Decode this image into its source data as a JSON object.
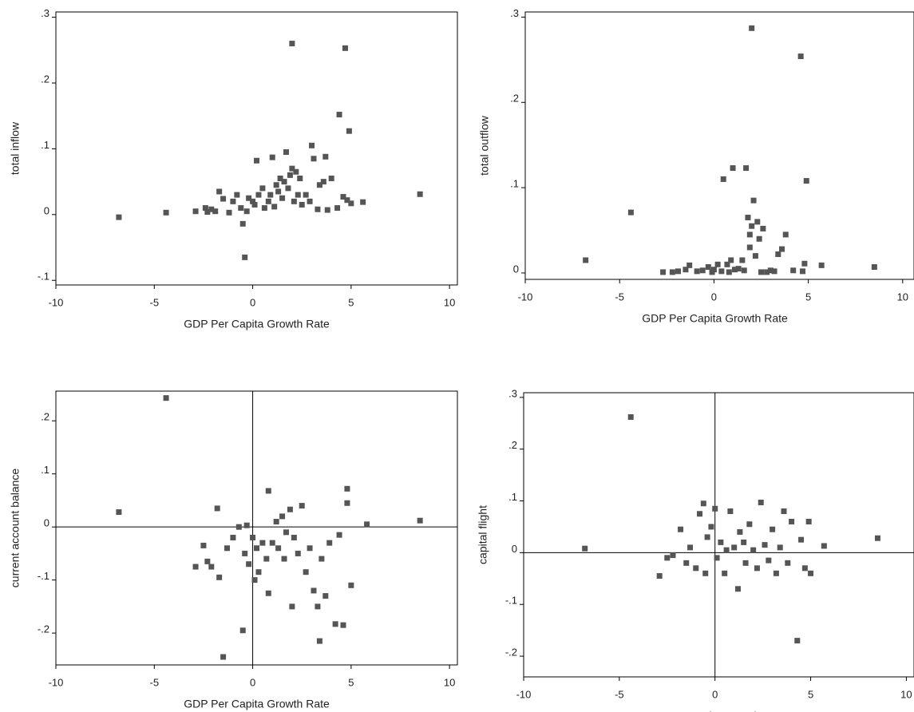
{
  "chart_data": [
    {
      "type": "scatter",
      "x_label": "GDP Per Capita Growth Rate",
      "y_label": "total inflow",
      "color": "#555555",
      "xlim": [
        -10,
        10.4
      ],
      "ylim": [
        -0.107,
        0.308
      ],
      "xticks": [
        -10,
        -5,
        0,
        5,
        10
      ],
      "yticks": [
        {
          "value": 0.3,
          "label": ".3"
        },
        {
          "value": 0.2,
          "label": ".2"
        },
        {
          "value": 0.1,
          "label": ".1"
        },
        0,
        {
          "value": -0.1,
          "label": "-.1"
        }
      ],
      "x": [
        -6.8,
        -4.4,
        -2.9,
        -2.4,
        -2.3,
        -2.1,
        -1.9,
        -1.7,
        -1.5,
        -1.2,
        -1,
        -0.8,
        -0.6,
        -0.5,
        -0.4,
        -0.3,
        -0.2,
        0,
        0.1,
        0.2,
        0.3,
        0.5,
        0.6,
        0.8,
        0.9,
        1,
        1.1,
        1.2,
        1.3,
        1.4,
        1.5,
        1.6,
        1.7,
        1.8,
        1.9,
        2,
        2,
        2.1,
        2.2,
        2.3,
        2.4,
        2.5,
        2.7,
        2.9,
        3,
        3.1,
        3.3,
        3.4,
        3.6,
        3.7,
        3.8,
        4,
        4.3,
        4.4,
        4.6,
        4.7,
        4.8,
        4.9,
        5,
        5.6,
        8.5
      ],
      "values": [
        -0.004,
        0.003,
        0.005,
        0.01,
        0.004,
        0.008,
        0.005,
        0.035,
        0.024,
        0.003,
        0.02,
        0.03,
        0.01,
        -0.014,
        -0.065,
        0.005,
        0.025,
        0.02,
        0.015,
        0.082,
        0.03,
        0.04,
        0.01,
        0.02,
        0.03,
        0.087,
        0.012,
        0.045,
        0.035,
        0.055,
        0.025,
        0.05,
        0.095,
        0.04,
        0.06,
        0.26,
        0.07,
        0.02,
        0.065,
        0.03,
        0.055,
        0.015,
        0.03,
        0.02,
        0.105,
        0.085,
        0.008,
        0.045,
        0.05,
        0.088,
        0.007,
        0.055,
        0.01,
        0.152,
        0.027,
        0.253,
        0.022,
        0.127,
        0.017,
        0.019,
        0.031
      ]
    },
    {
      "type": "scatter",
      "x_label": "GDP Per Capita Growth Rate",
      "y_label": "total outflow",
      "color": "#555555",
      "xlim": [
        -10,
        10.6
      ],
      "ylim": [
        -0.0075,
        0.306
      ],
      "xticks": [
        -10,
        -5,
        0,
        5,
        10
      ],
      "yticks": [
        {
          "value": 0.3,
          "label": ".3"
        },
        {
          "value": 0.2,
          "label": ".2"
        },
        {
          "value": 0.1,
          "label": ".1"
        },
        0
      ],
      "x": [
        -6.8,
        -4.4,
        -2.7,
        -2.2,
        -1.9,
        -1.5,
        -1.3,
        -0.9,
        -0.6,
        -0.3,
        0,
        0.2,
        0.4,
        0.5,
        0.7,
        0.9,
        1,
        1.1,
        1.3,
        1.5,
        1.7,
        1.8,
        1.9,
        1.9,
        2,
        2,
        2.1,
        2.2,
        2.3,
        2.4,
        2.6,
        2.8,
        3.2,
        3.4,
        3.6,
        3.8,
        4.2,
        4.6,
        4.7,
        4.8,
        4.9,
        5.7,
        8.5,
        3,
        2.5,
        1.6,
        0.8,
        -0.1
      ],
      "values": [
        0.015,
        0.071,
        0.001,
        0.001,
        0.002,
        0.004,
        0.009,
        0.002,
        0.003,
        0.007,
        0.004,
        0.01,
        0.002,
        0.11,
        0.01,
        0.015,
        0.123,
        0.004,
        0.005,
        0.015,
        0.123,
        0.065,
        0.045,
        0.03,
        0.287,
        0.055,
        0.085,
        0.02,
        0.06,
        0.04,
        0.052,
        0.001,
        0.002,
        0.022,
        0.028,
        0.045,
        0.003,
        0.254,
        0.002,
        0.011,
        0.108,
        0.009,
        0.007,
        0.003,
        0.001,
        0.003,
        0.001,
        0.001
      ]
    },
    {
      "type": "scatter",
      "x_label": "GDP Per Capita Growth Rate",
      "y_label": "current account balance",
      "color": "#555555",
      "reference_lines": true,
      "xlim": [
        -10,
        10.4
      ],
      "ylim": [
        -0.26,
        0.256
      ],
      "xticks": [
        -10,
        -5,
        0,
        5,
        10
      ],
      "yticks": [
        {
          "value": 0.2,
          "label": ".2"
        },
        {
          "value": 0.1,
          "label": ".1"
        },
        0,
        {
          "value": -0.1,
          "label": "-.1"
        },
        {
          "value": -0.2,
          "label": "-.2"
        }
      ],
      "x": [
        -6.8,
        -4.4,
        -2.9,
        -2.5,
        -2.3,
        -2.1,
        -1.8,
        -1.7,
        -1.5,
        -1.3,
        -1,
        -0.7,
        -0.5,
        -0.4,
        -0.3,
        -0.2,
        0,
        0.1,
        0.2,
        0.3,
        0.5,
        0.7,
        0.8,
        0.8,
        1,
        1.2,
        1.3,
        1.5,
        1.6,
        1.7,
        1.9,
        2,
        2.1,
        2.3,
        2.5,
        2.7,
        2.9,
        3.1,
        3.3,
        3.4,
        3.5,
        3.7,
        3.9,
        4.2,
        4.4,
        4.6,
        4.8,
        4.8,
        5,
        5.8,
        8.5
      ],
      "values": [
        0.028,
        0.243,
        -0.075,
        -0.035,
        -0.065,
        -0.075,
        0.035,
        -0.095,
        -0.245,
        -0.04,
        -0.02,
        0,
        -0.195,
        -0.05,
        0.003,
        -0.07,
        -0.02,
        -0.1,
        -0.04,
        -0.085,
        -0.03,
        -0.06,
        -0.125,
        0.068,
        -0.03,
        0.01,
        -0.04,
        0.02,
        -0.06,
        -0.01,
        0.033,
        -0.15,
        -0.02,
        -0.05,
        0.04,
        -0.085,
        -0.04,
        -0.12,
        -0.15,
        -0.215,
        -0.06,
        -0.13,
        -0.03,
        -0.183,
        -0.015,
        -0.185,
        0.072,
        0.045,
        -0.11,
        0.005,
        0.012
      ]
    },
    {
      "type": "scatter",
      "x_label": "GDP Per Capita Growth Rate",
      "y_label": "capital flight",
      "color": "#555555",
      "reference_lines": true,
      "xlim": [
        -10,
        10.4
      ],
      "ylim": [
        -0.24,
        0.309
      ],
      "xticks": [
        -10,
        -5,
        0,
        5,
        10
      ],
      "yticks": [
        {
          "value": 0.3,
          "label": ".3"
        },
        {
          "value": 0.2,
          "label": ".2"
        },
        {
          "value": 0.1,
          "label": ".1"
        },
        0,
        {
          "value": -0.1,
          "label": "-.1"
        },
        {
          "value": -0.2,
          "label": "-.2"
        }
      ],
      "x": [
        -6.8,
        -4.4,
        -2.9,
        -2.5,
        -2.2,
        -1.8,
        -1.5,
        -1.3,
        -1,
        -0.8,
        -0.6,
        -0.5,
        -0.4,
        -0.2,
        0,
        0.1,
        0.3,
        0.5,
        0.6,
        0.8,
        1,
        1.2,
        1.3,
        1.5,
        1.6,
        1.8,
        2,
        2.2,
        2.4,
        2.6,
        2.8,
        3,
        3.2,
        3.4,
        3.6,
        3.8,
        4,
        4.3,
        4.5,
        4.7,
        4.9,
        5,
        5.7,
        8.5
      ],
      "values": [
        0.008,
        0.262,
        -0.045,
        -0.01,
        -0.005,
        0.045,
        -0.02,
        0.01,
        -0.03,
        0.075,
        0.095,
        -0.04,
        0.03,
        0.05,
        0.085,
        -0.01,
        0.02,
        -0.04,
        0.005,
        0.08,
        0.01,
        -0.07,
        0.04,
        0.02,
        -0.02,
        0.055,
        0.005,
        -0.03,
        0.097,
        0.015,
        -0.015,
        0.045,
        -0.04,
        0.01,
        0.08,
        -0.02,
        0.06,
        -0.17,
        0.025,
        -0.03,
        0.06,
        -0.04,
        0.013,
        0.028
      ]
    }
  ]
}
